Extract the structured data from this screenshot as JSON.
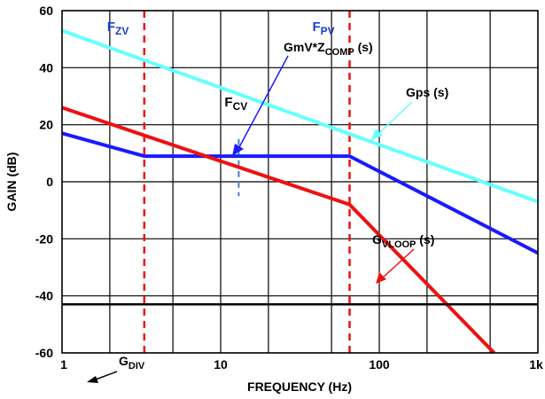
{
  "chart_data": {
    "type": "line",
    "xscale": "log",
    "xlim": [
      1,
      1000
    ],
    "ylim": [
      -60,
      60
    ],
    "xlabel": "FREQUENCY (Hz)",
    "ylabel": "GAIN (dB)",
    "grid": true,
    "x_ticks": [
      1,
      10,
      100,
      1000
    ],
    "x_tick_labels": [
      "1",
      "10",
      "100",
      "1k"
    ],
    "y_ticks": [
      -60,
      -40,
      -20,
      0,
      20,
      40,
      60
    ],
    "y_tick_labels": [
      "-60",
      "-40",
      "-20",
      "0",
      "20",
      "40",
      "60"
    ],
    "series": [
      {
        "name": "Gps (s)",
        "color": "#66ffff",
        "x": [
          1,
          1000
        ],
        "y": [
          53,
          -7
        ]
      },
      {
        "name": "GmV*ZCOMP (s)",
        "color": "#1a1aff",
        "x": [
          1,
          3.3,
          65,
          1000
        ],
        "y": [
          17,
          9,
          9,
          -25
        ]
      },
      {
        "name": "GVLOOP (s)",
        "color": "#ee1111",
        "x": [
          1,
          65,
          530
        ],
        "y": [
          26,
          -8,
          -60
        ]
      },
      {
        "name": "GDIV",
        "color": "#000000",
        "x": [
          1,
          1000
        ],
        "y": [
          -43,
          -43
        ]
      }
    ],
    "vlines": [
      {
        "label": "F",
        "sub": "ZV",
        "x": 3.3,
        "color": "#ee1111",
        "label_color": "#1a3fcc"
      },
      {
        "label": "F",
        "sub": "PV",
        "x": 65,
        "color": "#ee1111",
        "label_color": "#1a3fcc"
      }
    ],
    "fcv_marker": {
      "label": "F",
      "sub": "CV",
      "x": 13,
      "y_from": -5,
      "y_to": 15,
      "color": "#4a7fc0"
    },
    "annotations": {
      "gmv_main": "GmV*Z",
      "gmv_sub": "COMP",
      "gmv_tail": " (s)",
      "gps": "Gps (s)",
      "gvloop_main": "G",
      "gvloop_sub": "VLOOP",
      "gvloop_tail": " (s)",
      "gdiv_main": "G",
      "gdiv_sub": "DIV"
    }
  }
}
